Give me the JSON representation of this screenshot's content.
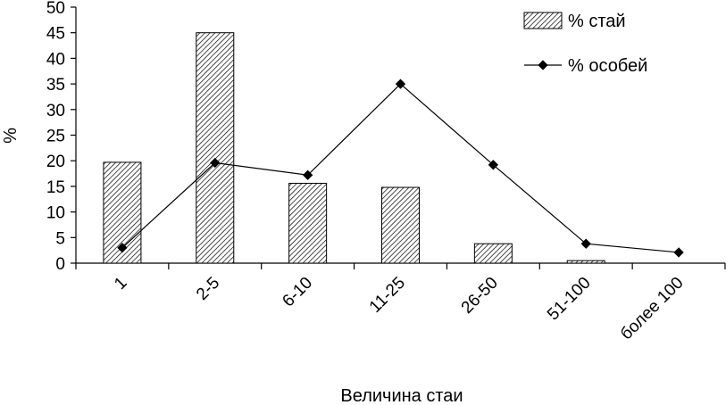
{
  "chart_data": {
    "type": "bar+line",
    "categories": [
      "1",
      "2-5",
      "6-10",
      "11-25",
      "26-50",
      "51-100",
      "более 100"
    ],
    "series": [
      {
        "name": "% стай",
        "type": "bar",
        "values": [
          19.7,
          45.0,
          15.6,
          14.8,
          3.8,
          0.5,
          0
        ]
      },
      {
        "name": "% особей",
        "type": "line",
        "values": [
          3.0,
          19.6,
          17.2,
          35.0,
          19.2,
          3.8,
          2.1
        ]
      }
    ],
    "ylabel": "%",
    "xlabel": "Величина стаи",
    "ylim": [
      0,
      50
    ],
    "yticks": [
      "0",
      "5",
      "10",
      "15",
      "20",
      "25",
      "30",
      "35",
      "40",
      "45",
      "50"
    ],
    "grid": false,
    "legend_position": "top-right",
    "colors": {
      "bar_fill": "#ffffff",
      "bar_hatch": "#000000",
      "line": "#000000",
      "marker": "#000000"
    }
  }
}
